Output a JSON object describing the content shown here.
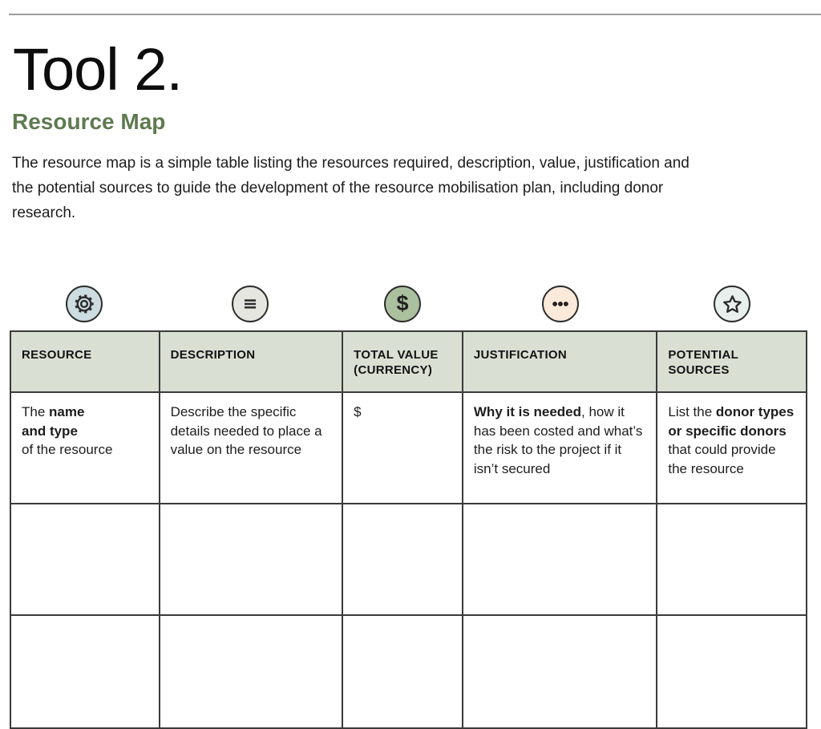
{
  "page": {
    "title": "Tool 2.",
    "subtitle": "Resource Map",
    "intro": "The resource map is a simple table listing the resources required, description, value, justification and the potential sources to guide the development of the resource mobilisation plan, including donor research."
  },
  "colors": {
    "subtitle_green": "#5f7a50",
    "table_header_bg": "#d9e0d3",
    "table_border": "#3a3a3a",
    "top_rule_gray": "#9b9b9b"
  },
  "icon_row": {
    "icons": [
      {
        "name": "gear-icon",
        "color": "#ccdce0"
      },
      {
        "name": "menu-icon",
        "color": "#e4e6df"
      },
      {
        "name": "dollar-icon",
        "color": "#abc09f",
        "glyph": "$"
      },
      {
        "name": "ellipsis-icon",
        "color": "#fbe9d9"
      },
      {
        "name": "star-icon",
        "color": "#e9efec"
      }
    ]
  },
  "table": {
    "headers": [
      "RESOURCE",
      "DESCRIPTION",
      "TOTAL VALUE\n(CURRENCY)",
      "JUSTIFICATION",
      "POTENTIAL\nSOURCES"
    ],
    "rows": [
      {
        "cells": [
          [
            {
              "text": "The ",
              "bold": false
            },
            {
              "text": "name",
              "bold": true
            },
            {
              "text": "\n",
              "bold": false
            },
            {
              "text": "and type",
              "bold": true
            },
            {
              "text": "\nof the resource",
              "bold": false
            }
          ],
          [
            {
              "text": "Describe the specific details needed to place a value on the resource",
              "bold": false
            }
          ],
          [
            {
              "text": "$",
              "bold": false
            }
          ],
          [
            {
              "text": "Why it is needed",
              "bold": true
            },
            {
              "text": ", how it has been costed and what’s the risk to the project if it isn’t secured",
              "bold": false
            }
          ],
          [
            {
              "text": "List the ",
              "bold": false
            },
            {
              "text": "donor types or specific donors",
              "bold": true
            },
            {
              "text": " that could provide the resource",
              "bold": false
            }
          ]
        ]
      },
      {
        "cells": [
          [],
          [],
          [],
          [],
          []
        ]
      },
      {
        "cells": [
          [],
          [],
          [],
          [],
          []
        ]
      }
    ]
  }
}
